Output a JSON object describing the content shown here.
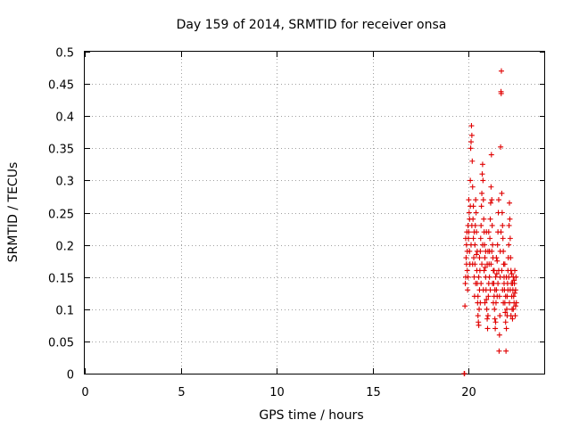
{
  "chart_data": {
    "type": "scatter",
    "title": "Day 159 of 2014, SRMTID for receiver onsa",
    "xlabel": "GPS time / hours",
    "ylabel": "SRMTID / TECUs",
    "xlim": [
      0,
      24
    ],
    "ylim": [
      0,
      0.5
    ],
    "grid": true,
    "marker": "plus",
    "marker_color": "#e00000",
    "x_ticks": [
      0,
      5,
      10,
      15,
      20
    ],
    "x_tick_labels": [
      "0",
      "5",
      "10",
      "15",
      "20"
    ],
    "y_ticks": [
      0,
      0.05,
      0.1,
      0.15,
      0.2,
      0.25,
      0.3,
      0.35,
      0.4,
      0.45,
      0.5
    ],
    "y_tick_labels": [
      "0",
      "0.05",
      "0.1",
      "0.15",
      "0.2",
      "0.25",
      "0.3",
      "0.35",
      "0.4",
      "0.45",
      "0.5"
    ],
    "points": [
      [
        19.78,
        0.0
      ],
      [
        19.8,
        0.0
      ],
      [
        19.82,
        0.105
      ],
      [
        19.84,
        0.14
      ],
      [
        19.86,
        0.15
      ],
      [
        19.88,
        0.18
      ],
      [
        19.9,
        0.2
      ],
      [
        19.92,
        0.22
      ],
      [
        19.94,
        0.16
      ],
      [
        19.96,
        0.13
      ],
      [
        19.98,
        0.23
      ],
      [
        20.0,
        0.21
      ],
      [
        20.02,
        0.27
      ],
      [
        20.04,
        0.25
      ],
      [
        20.06,
        0.19
      ],
      [
        20.08,
        0.17
      ],
      [
        20.1,
        0.3
      ],
      [
        20.12,
        0.35
      ],
      [
        20.14,
        0.36
      ],
      [
        20.16,
        0.385
      ],
      [
        20.18,
        0.37
      ],
      [
        20.2,
        0.33
      ],
      [
        20.22,
        0.29
      ],
      [
        20.24,
        0.24
      ],
      [
        20.26,
        0.21
      ],
      [
        20.28,
        0.18
      ],
      [
        20.3,
        0.15
      ],
      [
        20.32,
        0.12
      ],
      [
        20.34,
        0.2
      ],
      [
        20.36,
        0.23
      ],
      [
        20.38,
        0.27
      ],
      [
        20.4,
        0.25
      ],
      [
        20.42,
        0.185
      ],
      [
        20.44,
        0.16
      ],
      [
        20.46,
        0.14
      ],
      [
        20.48,
        0.11
      ],
      [
        20.5,
        0.09
      ],
      [
        20.52,
        0.08
      ],
      [
        20.54,
        0.075
      ],
      [
        20.56,
        0.1
      ],
      [
        20.58,
        0.13
      ],
      [
        20.6,
        0.16
      ],
      [
        20.62,
        0.19
      ],
      [
        20.64,
        0.21
      ],
      [
        20.66,
        0.23
      ],
      [
        20.68,
        0.26
      ],
      [
        20.7,
        0.28
      ],
      [
        20.72,
        0.31
      ],
      [
        20.74,
        0.325
      ],
      [
        20.76,
        0.3
      ],
      [
        20.78,
        0.27
      ],
      [
        20.8,
        0.24
      ],
      [
        20.82,
        0.22
      ],
      [
        20.84,
        0.2
      ],
      [
        20.86,
        0.18
      ],
      [
        20.88,
        0.165
      ],
      [
        20.9,
        0.15
      ],
      [
        20.92,
        0.13
      ],
      [
        20.94,
        0.115
      ],
      [
        20.96,
        0.1
      ],
      [
        20.98,
        0.085
      ],
      [
        21.0,
        0.07
      ],
      [
        21.02,
        0.09
      ],
      [
        21.04,
        0.12
      ],
      [
        21.06,
        0.14
      ],
      [
        21.08,
        0.17
      ],
      [
        21.1,
        0.19
      ],
      [
        21.12,
        0.21
      ],
      [
        21.14,
        0.24
      ],
      [
        21.16,
        0.265
      ],
      [
        21.18,
        0.29
      ],
      [
        21.2,
        0.34
      ],
      [
        21.22,
        0.27
      ],
      [
        21.24,
        0.23
      ],
      [
        21.26,
        0.2
      ],
      [
        21.28,
        0.18
      ],
      [
        21.3,
        0.16
      ],
      [
        21.32,
        0.14
      ],
      [
        21.34,
        0.12
      ],
      [
        21.36,
        0.1
      ],
      [
        21.38,
        0.085
      ],
      [
        21.4,
        0.07
      ],
      [
        21.42,
        0.08
      ],
      [
        21.44,
        0.11
      ],
      [
        21.46,
        0.13
      ],
      [
        21.48,
        0.155
      ],
      [
        21.5,
        0.175
      ],
      [
        21.52,
        0.2
      ],
      [
        21.54,
        0.22
      ],
      [
        21.56,
        0.25
      ],
      [
        21.58,
        0.27
      ],
      [
        21.6,
        0.035
      ],
      [
        21.62,
        0.06
      ],
      [
        21.64,
        0.09
      ],
      [
        21.66,
        0.15
      ],
      [
        21.68,
        0.352
      ],
      [
        21.7,
        0.438
      ],
      [
        21.71,
        0.435
      ],
      [
        21.72,
        0.47
      ],
      [
        21.74,
        0.28
      ],
      [
        21.76,
        0.25
      ],
      [
        21.78,
        0.23
      ],
      [
        21.8,
        0.21
      ],
      [
        21.82,
        0.19
      ],
      [
        21.84,
        0.17
      ],
      [
        21.86,
        0.15
      ],
      [
        21.88,
        0.13
      ],
      [
        21.9,
        0.11
      ],
      [
        21.92,
        0.095
      ],
      [
        21.94,
        0.08
      ],
      [
        21.96,
        0.035
      ],
      [
        21.98,
        0.07
      ],
      [
        22.0,
        0.1
      ],
      [
        22.02,
        0.12
      ],
      [
        22.04,
        0.14
      ],
      [
        22.06,
        0.16
      ],
      [
        22.08,
        0.18
      ],
      [
        22.1,
        0.2
      ],
      [
        22.12,
        0.23
      ],
      [
        22.14,
        0.265
      ],
      [
        22.16,
        0.24
      ],
      [
        22.18,
        0.21
      ],
      [
        22.2,
        0.18
      ],
      [
        22.22,
        0.16
      ],
      [
        22.24,
        0.14
      ],
      [
        22.26,
        0.12
      ],
      [
        22.28,
        0.1
      ],
      [
        22.3,
        0.085
      ],
      [
        22.32,
        0.13
      ],
      [
        22.34,
        0.15
      ],
      [
        22.36,
        0.12
      ],
      [
        22.38,
        0.11
      ],
      [
        22.4,
        0.14
      ],
      [
        22.42,
        0.16
      ],
      [
        22.44,
        0.09
      ],
      [
        22.46,
        0.13
      ],
      [
        22.48,
        0.15
      ],
      [
        22.5,
        0.11
      ],
      [
        19.86,
        0.21
      ],
      [
        19.9,
        0.17
      ],
      [
        19.94,
        0.19
      ],
      [
        19.98,
        0.15
      ],
      [
        20.02,
        0.22
      ],
      [
        20.06,
        0.24
      ],
      [
        20.1,
        0.26
      ],
      [
        20.14,
        0.2
      ],
      [
        20.18,
        0.23
      ],
      [
        20.22,
        0.17
      ],
      [
        20.26,
        0.26
      ],
      [
        20.3,
        0.22
      ],
      [
        20.34,
        0.17
      ],
      [
        20.38,
        0.14
      ],
      [
        20.42,
        0.22
      ],
      [
        20.46,
        0.19
      ],
      [
        20.5,
        0.12
      ],
      [
        20.54,
        0.15
      ],
      [
        20.58,
        0.18
      ],
      [
        20.62,
        0.11
      ],
      [
        20.66,
        0.14
      ],
      [
        20.7,
        0.17
      ],
      [
        20.74,
        0.2
      ],
      [
        20.78,
        0.13
      ],
      [
        20.82,
        0.16
      ],
      [
        20.86,
        0.11
      ],
      [
        20.9,
        0.19
      ],
      [
        20.94,
        0.22
      ],
      [
        20.98,
        0.17
      ],
      [
        21.02,
        0.19
      ],
      [
        21.06,
        0.22
      ],
      [
        21.1,
        0.15
      ],
      [
        21.14,
        0.13
      ],
      [
        21.18,
        0.17
      ],
      [
        21.22,
        0.19
      ],
      [
        21.26,
        0.14
      ],
      [
        21.3,
        0.11
      ],
      [
        21.34,
        0.16
      ],
      [
        21.38,
        0.13
      ],
      [
        21.42,
        0.15
      ],
      [
        21.46,
        0.18
      ],
      [
        21.5,
        0.12
      ],
      [
        21.54,
        0.14
      ],
      [
        21.58,
        0.16
      ],
      [
        21.62,
        0.12
      ],
      [
        21.66,
        0.19
      ],
      [
        21.7,
        0.22
      ],
      [
        21.74,
        0.16
      ],
      [
        21.78,
        0.13
      ],
      [
        21.82,
        0.11
      ],
      [
        21.86,
        0.14
      ],
      [
        21.9,
        0.17
      ],
      [
        21.94,
        0.12
      ],
      [
        21.98,
        0.15
      ],
      [
        22.02,
        0.09
      ],
      [
        22.06,
        0.13
      ],
      [
        22.1,
        0.15
      ],
      [
        22.14,
        0.11
      ],
      [
        22.18,
        0.13
      ],
      [
        22.22,
        0.09
      ],
      [
        22.26,
        0.155
      ],
      [
        22.3,
        0.14
      ],
      [
        22.34,
        0.1
      ],
      [
        22.38,
        0.145
      ],
      [
        22.42,
        0.125
      ],
      [
        22.46,
        0.105
      ]
    ]
  }
}
